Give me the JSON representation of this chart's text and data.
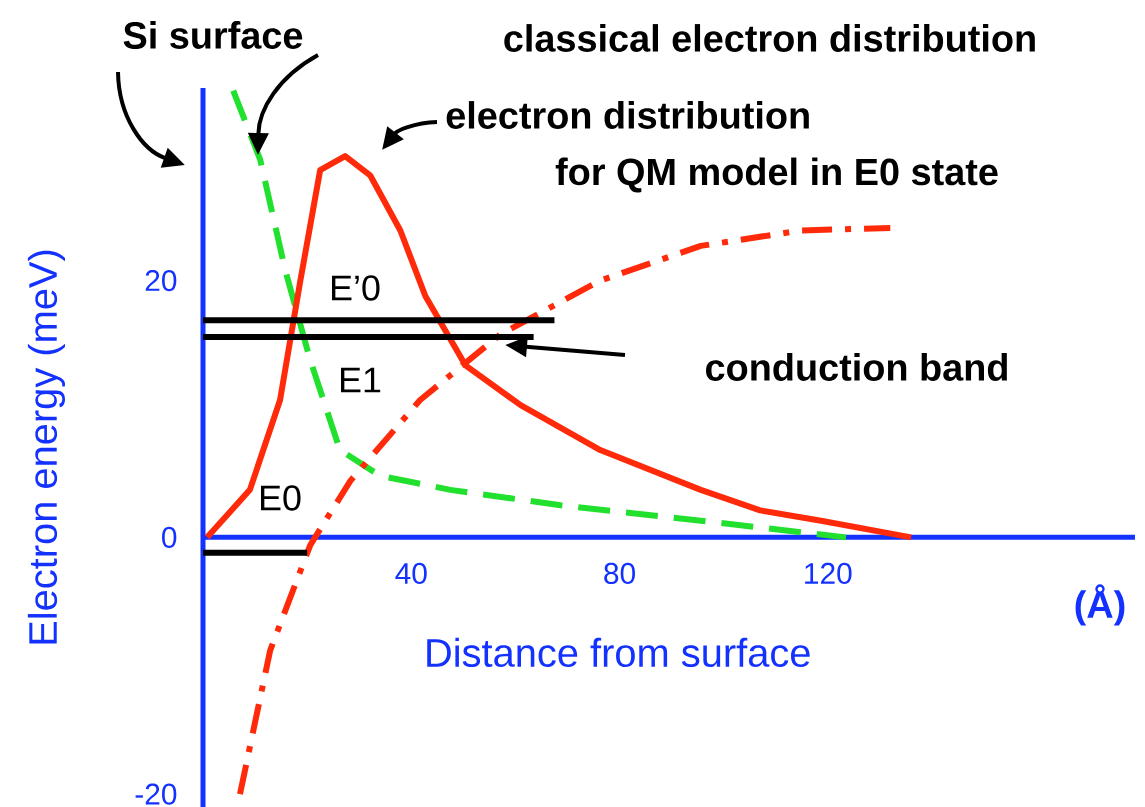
{
  "chart_data": {
    "type": "line",
    "xlabel": "Distance from surface",
    "ylabel": "Electron energy (meV)",
    "xlim": [
      0,
      179
    ],
    "ylim": [
      -21,
      35
    ],
    "xticks": [
      40,
      80,
      120
    ],
    "yticks": [
      -20,
      0,
      20
    ],
    "series": [
      {
        "color": "#22e02e",
        "line_style": "dashed",
        "x": [
          5.8,
          11,
          15.8,
          20.6,
          26.3,
          34,
          47.5,
          68.7,
          95.6,
          123.5
        ],
        "values": [
          34.8,
          29.4,
          20.8,
          13.8,
          6.8,
          4.8,
          3.7,
          2.5,
          1.3,
          0
        ]
      },
      {
        "color": "#ff2a0a",
        "line_style": "solid",
        "x": [
          0.8,
          9,
          14.8,
          18.7,
          22.5,
          27.3,
          32.1,
          37.9,
          42.7,
          50.4,
          61,
          76.3,
          95.6,
          107,
          118.7,
          136
        ],
        "values": [
          0,
          3.7,
          10.7,
          20,
          28.6,
          29.7,
          28.2,
          23.9,
          18.8,
          13.4,
          10.3,
          6.8,
          3.7,
          2.1,
          1.3,
          0
        ]
      },
      {
        "color": "#ff2a0a",
        "line_style": "dashdot",
        "x": [
          7.1,
          12.9,
          20.6,
          28.3,
          41.7,
          57.1,
          76.3,
          95.6,
          114.8,
          132
        ],
        "values": [
          -20,
          -8.8,
          -0.6,
          4.4,
          10.7,
          15.8,
          20,
          22.7,
          23.9,
          24.1
        ]
      },
      {
        "color": "#000000",
        "line_style": "solid",
        "x": [
          0,
          67.5
        ],
        "values": [
          16.9,
          16.9
        ]
      },
      {
        "color": "#000000",
        "line_style": "solid",
        "x": [
          0,
          63.5
        ],
        "values": [
          15.6,
          15.6
        ]
      },
      {
        "color": "#000000",
        "line_style": "solid",
        "x": [
          0,
          20
        ],
        "values": [
          -1.2,
          -1.2
        ]
      }
    ],
    "annotations": [
      "Si surface",
      "classical electron distribution",
      "electron distribution",
      "for QM model in E0 state",
      "conduction band",
      "E’0",
      "E1",
      "E0",
      "(Å)"
    ]
  }
}
